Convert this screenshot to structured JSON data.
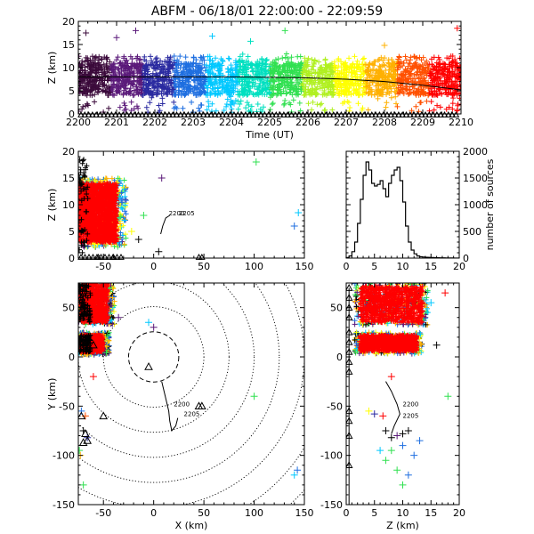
{
  "title": "ABFM - 06/18/01 22:00:00 - 22:09:59",
  "colors": {
    "rainbow": [
      "#3b0a3b",
      "#5b1a7a",
      "#2a2aa0",
      "#1f6fe0",
      "#00c8ff",
      "#00e0c0",
      "#30e050",
      "#b0f020",
      "#ffff00",
      "#ffb000",
      "#ff5000",
      "#ff0000"
    ],
    "stations": "#000000"
  },
  "chart_data": [
    {
      "id": "time-height",
      "type": "scatter",
      "xlabel": "Time (UT)",
      "ylabel": "Z (km)",
      "xlim": [
        2200,
        2210
      ],
      "ylim": [
        0,
        20
      ],
      "xticks": [
        "2200",
        "2201",
        "2202",
        "2203",
        "2204",
        "2205",
        "2206",
        "2207",
        "2208",
        "2209",
        "2210"
      ],
      "yticks": [
        0,
        5,
        10,
        15,
        20
      ],
      "band": {
        "low": 4,
        "high": 11,
        "cap_top": 12.5
      },
      "median_curve": {
        "x": [
          2200,
          2201,
          2202,
          2203,
          2204,
          2205,
          2206,
          2207,
          2208,
          2209,
          2210
        ],
        "y": [
          8.0,
          8.0,
          8.0,
          8.0,
          8.0,
          7.9,
          7.8,
          7.5,
          7.0,
          6.2,
          5.2
        ]
      },
      "outliers": [
        {
          "x": 2201.0,
          "y": 16.5
        },
        {
          "x": 2201.5,
          "y": 18.0
        },
        {
          "x": 2204.5,
          "y": 15.7
        },
        {
          "x": 2205.4,
          "y": 18.0
        },
        {
          "x": 2209.9,
          "y": 18.5
        },
        {
          "x": 2200.2,
          "y": 17.5
        },
        {
          "x": 2203.5,
          "y": 16.8
        },
        {
          "x": 2208.0,
          "y": 14.8
        }
      ],
      "triangles_y": -0.8
    },
    {
      "id": "x-z",
      "type": "scatter",
      "xlabel": "",
      "ylabel": "Z (km)",
      "xlim": [
        -75,
        150
      ],
      "ylim": [
        0,
        20
      ],
      "xticks": [
        -50,
        0,
        50,
        100,
        150
      ],
      "yticks": [
        0,
        5,
        10,
        15,
        20
      ],
      "cluster": {
        "xmin": -75,
        "xmax": -35,
        "zmin": 2,
        "zmax": 15
      },
      "outliers": [
        {
          "x": 8,
          "y": 15,
          "c": "#5b1a7a"
        },
        {
          "x": -10,
          "y": 8,
          "c": "#30e050"
        },
        {
          "x": 102,
          "y": 18,
          "c": "#30e050"
        },
        {
          "x": 140,
          "y": 6,
          "c": "#1f6fe0"
        },
        {
          "x": 144,
          "y": 8.5,
          "c": "#00c8ff"
        },
        {
          "x": -15,
          "y": 3.5,
          "c": "#000000"
        },
        {
          "x": 5,
          "y": 1.2,
          "c": "#000000"
        },
        {
          "x": -22,
          "y": 5,
          "c": "#ffff00"
        }
      ],
      "triangles": [
        {
          "x": 45,
          "y": -0.3
        },
        {
          "x": 48,
          "y": -0.3
        },
        {
          "x": -55,
          "y": -0.3
        },
        {
          "x": -40,
          "y": -0.3
        }
      ],
      "trace": [
        [
          7,
          4.5
        ],
        [
          9,
          6
        ],
        [
          12,
          7.5
        ],
        [
          16,
          8
        ]
      ],
      "labels": [
        {
          "text": "2200",
          "x": 15,
          "y": 8
        },
        {
          "text": "2205",
          "x": 25,
          "y": 8
        }
      ]
    },
    {
      "id": "histogram",
      "type": "line",
      "xlabel": "",
      "ylabel": "number of sources",
      "xlim": [
        0,
        20
      ],
      "ylim": [
        0,
        2000
      ],
      "xticks": [
        0,
        5,
        10,
        15,
        20
      ],
      "yticks": [
        0,
        500,
        1000,
        1500,
        2000
      ],
      "x": [
        0.5,
        1,
        1.5,
        2,
        2.5,
        3,
        3.5,
        4,
        4.5,
        5,
        5.5,
        6,
        6.5,
        7,
        7.5,
        8,
        8.5,
        9,
        9.5,
        10,
        10.5,
        11,
        11.5,
        12,
        12.5,
        13,
        13.5,
        14,
        14.5,
        15,
        15.5,
        16,
        16.5,
        17,
        17.5,
        18,
        18.5,
        19,
        19.5,
        20
      ],
      "y": [
        10,
        40,
        120,
        300,
        650,
        1100,
        1550,
        1800,
        1650,
        1400,
        1350,
        1380,
        1450,
        1300,
        1150,
        1400,
        1550,
        1650,
        1700,
        1450,
        1050,
        600,
        300,
        150,
        80,
        40,
        25,
        20,
        15,
        12,
        10,
        8,
        6,
        5,
        4,
        3,
        2,
        2,
        1,
        1
      ]
    },
    {
      "id": "x-y",
      "type": "scatter",
      "xlabel": "X (km)",
      "ylabel": "Y (km)",
      "xlim": [
        -75,
        150
      ],
      "ylim": [
        -150,
        75
      ],
      "xticks": [
        -50,
        0,
        50,
        100,
        150
      ],
      "yticks": [
        -150,
        -100,
        -50,
        0,
        50
      ],
      "rings_km": [
        25,
        50,
        75,
        100,
        125,
        150,
        175,
        200
      ],
      "clusters": [
        {
          "xmin": -75,
          "xmax": -45,
          "ymin": 35,
          "ymax": 75
        },
        {
          "xmin": -75,
          "xmax": -50,
          "ymin": 5,
          "ymax": 22
        }
      ],
      "outliers": [
        {
          "x": 100,
          "y": -40,
          "c": "#30e050"
        },
        {
          "x": 143,
          "y": -115,
          "c": "#1f6fe0"
        },
        {
          "x": 140,
          "y": -120,
          "c": "#00c8ff"
        },
        {
          "x": -70,
          "y": -130,
          "c": "#30e050"
        },
        {
          "x": -60,
          "y": -20,
          "c": "#ff0000"
        },
        {
          "x": -35,
          "y": 40,
          "c": "#5b1a7a"
        },
        {
          "x": -5,
          "y": 35,
          "c": "#00c8ff"
        },
        {
          "x": 0,
          "y": 30,
          "c": "#5b1a7a"
        },
        {
          "x": -72,
          "y": -55,
          "c": "#1f6fe0"
        },
        {
          "x": -68,
          "y": -60,
          "c": "#ff5000"
        },
        {
          "x": -70,
          "y": -75,
          "c": "#000000"
        },
        {
          "x": -66,
          "y": -82,
          "c": "#2a2aa0"
        },
        {
          "x": -73,
          "y": -100,
          "c": "#ffb000"
        },
        {
          "x": -74,
          "y": -95,
          "c": "#30e050"
        }
      ],
      "triangles": [
        {
          "x": -5,
          "y": -10
        },
        {
          "x": -50,
          "y": -60
        },
        {
          "x": 45,
          "y": -50
        },
        {
          "x": 48,
          "y": -50
        },
        {
          "x": -72,
          "y": -60
        },
        {
          "x": -68,
          "y": -78
        },
        {
          "x": -70,
          "y": -87
        },
        {
          "x": -66,
          "y": -85
        },
        {
          "x": -72,
          "y": 40
        },
        {
          "x": -66,
          "y": 45
        },
        {
          "x": -60,
          "y": 12
        },
        {
          "x": -70,
          "y": 15
        },
        {
          "x": -72,
          "y": 60
        }
      ],
      "trace": [
        [
          8,
          -25
        ],
        [
          12,
          -42
        ],
        [
          15,
          -55
        ],
        [
          16,
          -65
        ],
        [
          18,
          -75
        ],
        [
          22,
          -70
        ],
        [
          24,
          -62
        ]
      ],
      "labels": [
        {
          "text": "2200",
          "x": 20,
          "y": -50
        },
        {
          "text": "2205",
          "x": 30,
          "y": -60
        }
      ]
    },
    {
      "id": "z-y",
      "type": "scatter",
      "xlabel": "Z (km)",
      "ylabel": "",
      "xlim": [
        0,
        20
      ],
      "ylim": [
        -150,
        75
      ],
      "xticks": [
        0,
        5,
        10,
        15,
        20
      ],
      "yticks": [
        -150,
        -100,
        -50,
        0,
        50
      ],
      "clusters": [
        {
          "xmin": 2,
          "xmax": 14,
          "ymin": 35,
          "ymax": 72
        },
        {
          "xmin": 2,
          "xmax": 13,
          "ymin": 6,
          "ymax": 22
        }
      ],
      "outliers": [
        {
          "x": 17.5,
          "y": 65,
          "c": "#ff0000"
        },
        {
          "x": 15,
          "y": 55,
          "c": "#00c8ff"
        },
        {
          "x": 16,
          "y": 12,
          "c": "#000000"
        },
        {
          "x": 18,
          "y": -40,
          "c": "#30e050"
        },
        {
          "x": 8,
          "y": -20,
          "c": "#ff0000"
        },
        {
          "x": 10,
          "y": -130,
          "c": "#30e050"
        },
        {
          "x": 9,
          "y": -115,
          "c": "#30e050"
        },
        {
          "x": 11,
          "y": -120,
          "c": "#1f6fe0"
        },
        {
          "x": 12,
          "y": -100,
          "c": "#1f6fe0"
        },
        {
          "x": 8,
          "y": -95,
          "c": "#30e050"
        },
        {
          "x": 7,
          "y": -105,
          "c": "#30e050"
        },
        {
          "x": 6,
          "y": -95,
          "c": "#00c8ff"
        },
        {
          "x": 13,
          "y": -85,
          "c": "#1f6fe0"
        },
        {
          "x": 5,
          "y": -58,
          "c": "#2a2aa0"
        },
        {
          "x": 4,
          "y": -55,
          "c": "#ffff00"
        },
        {
          "x": 6.5,
          "y": -60,
          "c": "#ff0000"
        },
        {
          "x": 9,
          "y": -80,
          "c": "#5b1a7a"
        },
        {
          "x": 10,
          "y": -78,
          "c": "#000000"
        },
        {
          "x": 11,
          "y": -75,
          "c": "#000000"
        },
        {
          "x": 8,
          "y": -82,
          "c": "#000000"
        },
        {
          "x": 7,
          "y": -75,
          "c": "#000000"
        },
        {
          "x": 10,
          "y": -90,
          "c": "#1f6fe0"
        }
      ],
      "triangles": [
        {
          "x": 0.5,
          "y": 70
        },
        {
          "x": 0.5,
          "y": 60
        },
        {
          "x": 0.5,
          "y": 50
        },
        {
          "x": 0.5,
          "y": 40
        },
        {
          "x": 0.5,
          "y": 25
        },
        {
          "x": 0.5,
          "y": 15
        },
        {
          "x": 0.5,
          "y": 5
        },
        {
          "x": 0.5,
          "y": -5
        },
        {
          "x": 0.5,
          "y": -15
        },
        {
          "x": 0.5,
          "y": -55
        },
        {
          "x": 0.5,
          "y": -65
        },
        {
          "x": 0.5,
          "y": -80
        },
        {
          "x": 0.5,
          "y": -110
        }
      ],
      "trace": [
        [
          7,
          -25
        ],
        [
          8,
          -35
        ],
        [
          9,
          -48
        ],
        [
          9.5,
          -58
        ],
        [
          8.5,
          -70
        ],
        [
          8,
          -78
        ]
      ],
      "labels": [
        {
          "text": "2200",
          "x": 10,
          "y": -50
        },
        {
          "text": "2205",
          "x": 10,
          "y": -62
        }
      ]
    }
  ]
}
